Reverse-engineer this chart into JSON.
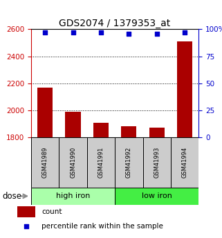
{
  "title": "GDS2074 / 1379353_at",
  "samples": [
    "GSM41989",
    "GSM41990",
    "GSM41991",
    "GSM41992",
    "GSM41993",
    "GSM41994"
  ],
  "bar_values": [
    2170,
    1990,
    1910,
    1885,
    1875,
    2510
  ],
  "percentile_values": [
    97,
    97,
    97,
    96,
    96,
    97
  ],
  "y_min": 1800,
  "y_max": 2600,
  "y_ticks": [
    1800,
    2000,
    2200,
    2400,
    2600
  ],
  "y2_ticks": [
    0,
    25,
    50,
    75,
    100
  ],
  "y2_tick_labels": [
    "0",
    "25",
    "50",
    "75",
    "100%"
  ],
  "groups": [
    {
      "label": "high iron",
      "color": "#aaffaa"
    },
    {
      "label": "low iron",
      "color": "#44ee44"
    }
  ],
  "bar_color": "#aa0000",
  "dot_color": "#0000cc",
  "left_axis_color": "#cc0000",
  "right_axis_color": "#0000cc",
  "grid_color": "#000000",
  "sample_box_color": "#cccccc",
  "dose_label": "dose",
  "legend_count": "count",
  "legend_percentile": "percentile rank within the sample",
  "title_fontsize": 10,
  "tick_fontsize": 7.5,
  "sample_fontsize": 6,
  "group_fontsize": 8,
  "legend_fontsize": 7.5
}
